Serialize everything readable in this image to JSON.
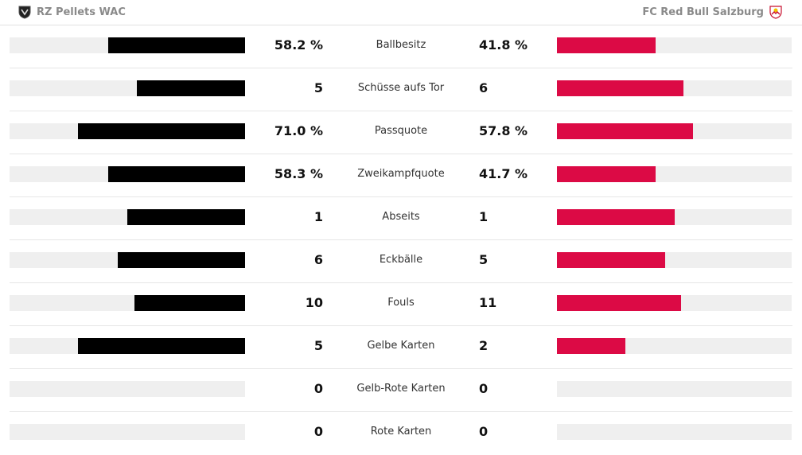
{
  "header": {
    "home_team": "RZ Pellets WAC",
    "away_team": "FC Red Bull Salzburg",
    "home_icon": "wac-crest-icon",
    "away_icon": "redbull-salzburg-crest-icon"
  },
  "colors": {
    "home_bar": "#000000",
    "away_bar": "#dc0a45",
    "track": "#efefef"
  },
  "chart_data": {
    "type": "bar",
    "categories": [
      "Ballbesitz",
      "Schüsse aufs Tor",
      "Passquote",
      "Zweikampfquote",
      "Abseits",
      "Eckbälle",
      "Fouls",
      "Gelbe Karten",
      "Gelb-Rote Karten",
      "Rote Karten"
    ],
    "series": [
      {
        "name": "RZ Pellets WAC",
        "values": [
          58.2,
          5,
          71.0,
          58.3,
          1,
          6,
          10,
          5,
          0,
          0
        ]
      },
      {
        "name": "FC Red Bull Salzburg",
        "values": [
          41.8,
          6,
          57.8,
          41.7,
          1,
          5,
          11,
          2,
          0,
          0
        ]
      }
    ],
    "home_labels": [
      "58.2 %",
      "5",
      "71.0 %",
      "58.3 %",
      "1",
      "6",
      "10",
      "5",
      "0",
      "0"
    ],
    "away_labels": [
      "41.8 %",
      "6",
      "57.8 %",
      "41.7 %",
      "1",
      "5",
      "11",
      "2",
      "0",
      "0"
    ],
    "bar_fraction_home": [
      0.58,
      0.46,
      0.71,
      0.58,
      0.5,
      0.54,
      0.47,
      0.71,
      0,
      0
    ],
    "bar_fraction_away": [
      0.42,
      0.54,
      0.58,
      0.42,
      0.5,
      0.46,
      0.53,
      0.29,
      0,
      0
    ]
  }
}
